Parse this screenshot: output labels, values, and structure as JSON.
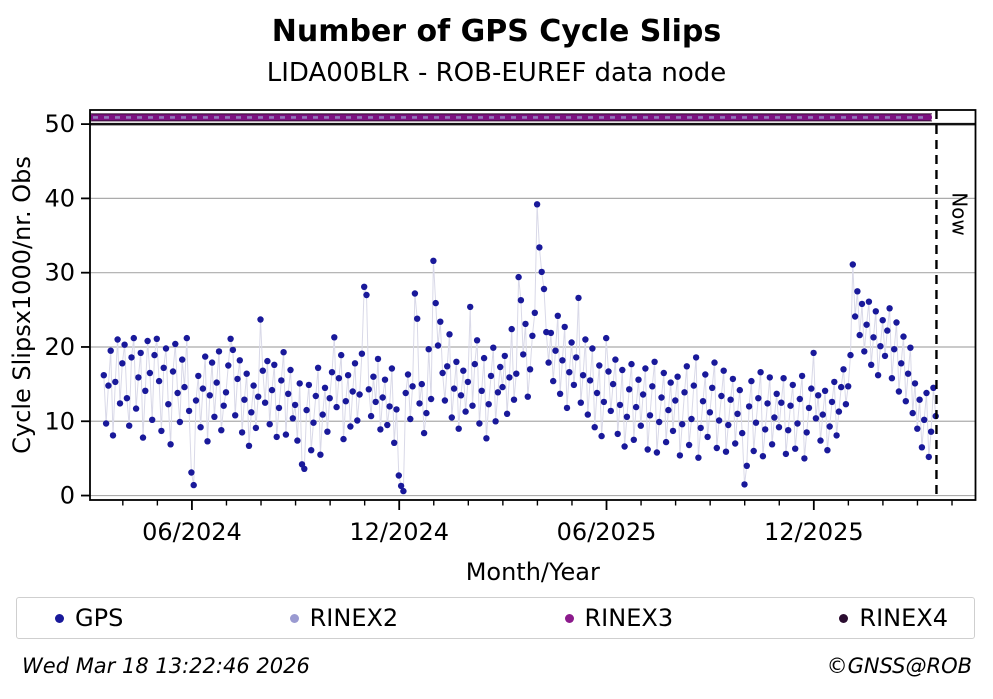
{
  "page": {
    "title": "Number of GPS Cycle Slips",
    "subtitle": "LIDA00BLR - ROB-EUREF data node",
    "footer_left": "Wed Mar 18 13:22:46 2026",
    "footer_right": "©GNSS@ROB"
  },
  "legend": {
    "items": [
      {
        "label": "GPS",
        "color": "#19199a"
      },
      {
        "label": "RINEX2",
        "color": "#9a9ad1"
      },
      {
        "label": "RINEX3",
        "color": "#8c1a8c"
      },
      {
        "label": "RINEX4",
        "color": "#2b0d30"
      }
    ]
  },
  "colors": {
    "gps": "#19199a",
    "connector": "#d9d9e8",
    "rinex2": "#9a9ad1",
    "rinex3": "#7c1080",
    "rinex3_edge": "#30082f",
    "rinex4": "#111111",
    "grid": "#ababab",
    "frame": "#000000"
  },
  "chart_data": {
    "type": "scatter",
    "title": "Number of GPS Cycle Slips",
    "subtitle": "LIDA00BLR - ROB-EUREF data node",
    "xlabel": "Month/Year",
    "ylabel": "Cycle Slipsx1000/nr. Obs",
    "x_unit": "months since 2024-03-01",
    "xlim": [
      0.05,
      25.68
    ],
    "ylim": [
      -0.6,
      51.9
    ],
    "grid": "horizontal",
    "yticks": [
      0,
      10,
      20,
      30,
      40,
      50
    ],
    "xticks_major": [
      {
        "m": 3,
        "label": "06/2024"
      },
      {
        "m": 9,
        "label": "12/2024"
      },
      {
        "m": 15,
        "label": "06/2025"
      },
      {
        "m": 21,
        "label": "12/2025"
      }
    ],
    "xticks_minor_months": [
      1,
      2,
      4,
      5,
      6,
      7,
      8,
      10,
      11,
      12,
      13,
      14,
      16,
      17,
      18,
      19,
      20,
      22,
      23,
      24,
      25
    ],
    "now_line": {
      "m": 24.55,
      "label": "Now"
    },
    "legend_position": "bottom",
    "series": [
      {
        "name": "GPS",
        "type": "scatter-line",
        "x_start": 0.45,
        "x_step": 0.0667,
        "y": [
          16.2,
          9.7,
          14.8,
          19.5,
          8.1,
          15.3,
          21.0,
          12.4,
          17.8,
          20.3,
          13.1,
          9.4,
          18.6,
          21.2,
          11.7,
          15.9,
          19.2,
          7.8,
          14.1,
          20.8,
          16.5,
          10.2,
          18.9,
          21.1,
          15.4,
          8.7,
          17.2,
          19.8,
          12.3,
          6.9,
          16.7,
          20.4,
          13.8,
          9.9,
          18.3,
          14.6,
          21.2,
          11.4,
          3.1,
          1.4,
          12.8,
          16.1,
          9.2,
          14.4,
          18.7,
          7.3,
          13.5,
          17.9,
          10.6,
          15.2,
          19.4,
          8.8,
          12.1,
          13.9,
          17.5,
          21.1,
          19.6,
          10.8,
          15.7,
          18.2,
          8.5,
          12.9,
          16.4,
          6.7,
          11.2,
          14.8,
          9.1,
          13.3,
          23.7,
          16.8,
          12.5,
          18.1,
          9.6,
          14.2,
          17.6,
          7.9,
          11.8,
          15.5,
          19.3,
          8.2,
          13.7,
          16.9,
          10.4,
          12.2,
          7.4,
          15.1,
          4.2,
          3.6,
          11.5,
          14.9,
          6.1,
          9.8,
          13.4,
          17.2,
          5.5,
          10.9,
          14.5,
          8.6,
          13.1,
          16.6,
          21.3,
          11.9,
          15.8,
          18.9,
          7.6,
          12.7,
          16.2,
          9.3,
          14.0,
          17.8,
          10.1,
          13.6,
          19.1,
          28.1,
          27.0,
          14.3,
          10.7,
          16.0,
          12.6,
          18.4,
          8.9,
          13.2,
          15.6,
          9.5,
          12.0,
          17.1,
          7.1,
          11.6,
          2.7,
          1.3,
          0.6,
          13.8,
          16.3,
          10.3,
          14.7,
          27.2,
          23.8,
          12.4,
          15.0,
          8.4,
          11.1,
          19.7,
          13.0,
          31.6,
          25.9,
          20.2,
          23.4,
          16.5,
          12.8,
          17.4,
          21.7,
          10.5,
          14.4,
          18.0,
          9.0,
          13.5,
          16.8,
          11.3,
          15.3,
          25.4,
          12.1,
          17.7,
          20.9,
          9.7,
          14.1,
          18.5,
          7.7,
          12.3,
          16.1,
          19.9,
          10.0,
          13.9,
          17.3,
          14.6,
          18.8,
          11.0,
          15.9,
          22.4,
          12.9,
          16.4,
          29.4,
          26.3,
          19.0,
          23.1,
          13.3,
          17.0,
          21.5,
          24.6,
          39.2,
          33.4,
          30.1,
          27.8,
          22.0,
          17.9,
          21.9,
          15.4,
          19.5,
          24.2,
          13.7,
          18.2,
          22.7,
          11.8,
          16.6,
          20.6,
          14.9,
          18.6,
          26.6,
          12.5,
          16.2,
          21.0,
          10.9,
          15.5,
          19.8,
          9.2,
          13.8,
          17.5,
          8.0,
          12.6,
          21.2,
          16.7,
          11.4,
          15.0,
          18.3,
          8.3,
          12.2,
          16.9,
          6.6,
          10.6,
          14.3,
          17.7,
          7.5,
          11.9,
          15.6,
          9.4,
          13.6,
          17.1,
          6.2,
          10.8,
          14.7,
          18.0,
          5.8,
          9.9,
          13.2,
          16.5,
          7.2,
          11.5,
          15.2,
          8.7,
          12.8,
          16.0,
          5.4,
          9.6,
          13.9,
          17.4,
          6.8,
          10.3,
          14.8,
          18.6,
          5.1,
          9.1,
          12.7,
          16.3,
          7.9,
          11.2,
          14.5,
          17.9,
          6.4,
          10.1,
          13.4,
          16.8,
          5.9,
          9.5,
          12.9,
          15.7,
          7.0,
          11.0,
          14.2,
          8.4,
          1.5,
          4.0,
          12.0,
          15.4,
          6.0,
          9.8,
          13.1,
          16.6,
          5.3,
          8.9,
          12.4,
          15.9,
          6.9,
          10.5,
          13.7,
          9.2,
          12.5,
          15.8,
          5.6,
          8.8,
          12.1,
          14.9,
          6.3,
          9.7,
          13.0,
          16.1,
          5.0,
          8.5,
          11.8,
          14.4,
          19.2,
          10.4,
          13.5,
          7.4,
          10.9,
          14.1,
          6.1,
          9.3,
          12.6,
          15.3,
          8.1,
          11.3,
          14.6,
          17.0,
          12.3,
          14.7,
          18.9,
          31.1,
          24.1,
          27.5,
          21.6,
          25.8,
          19.4,
          23.0,
          26.1,
          17.6,
          21.3,
          24.8,
          16.2,
          20.1,
          23.6,
          18.8,
          22.2,
          25.2,
          15.8,
          19.7,
          23.3,
          14.0,
          17.8,
          21.4,
          12.7,
          16.4,
          19.9,
          11.1,
          15.1,
          9.0,
          12.9,
          6.5,
          10.2,
          13.8,
          5.2,
          8.6,
          14.5,
          10.7
        ]
      },
      {
        "name": "RINEX2",
        "type": "band-overlay-dashes",
        "y_level": 50.9,
        "x_start": 0.05,
        "x_end": 24.42
      },
      {
        "name": "RINEX3",
        "type": "band",
        "y_level": 50.9,
        "x_start": 0.05,
        "x_end": 24.42
      },
      {
        "name": "RINEX4",
        "type": "hline",
        "y_level": 50.0,
        "x_start": 0.05,
        "x_end": 25.68
      }
    ]
  }
}
